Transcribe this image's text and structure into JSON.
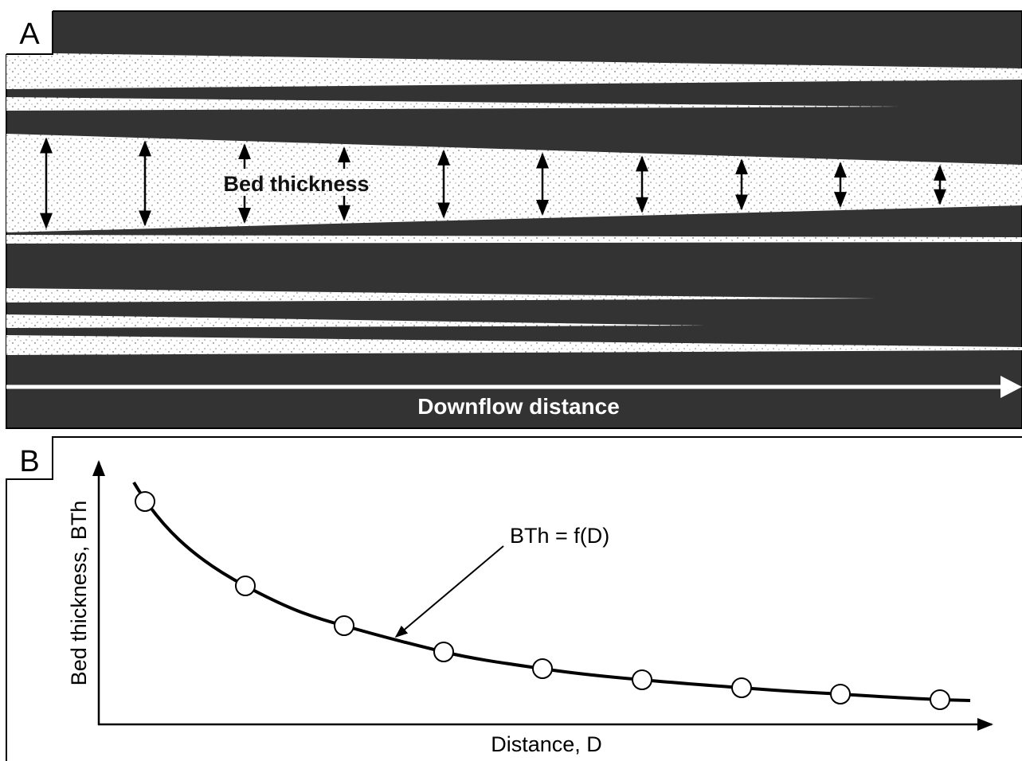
{
  "panel_a": {
    "label": "A",
    "bed_label": "Bed thickness",
    "axis_label": "Downflow distance"
  },
  "panel_b": {
    "label": "B",
    "y_axis_label": "Bed thickness, BTh",
    "x_axis_label": "Distance, D",
    "annotation": "BTh = f(D)"
  }
}
